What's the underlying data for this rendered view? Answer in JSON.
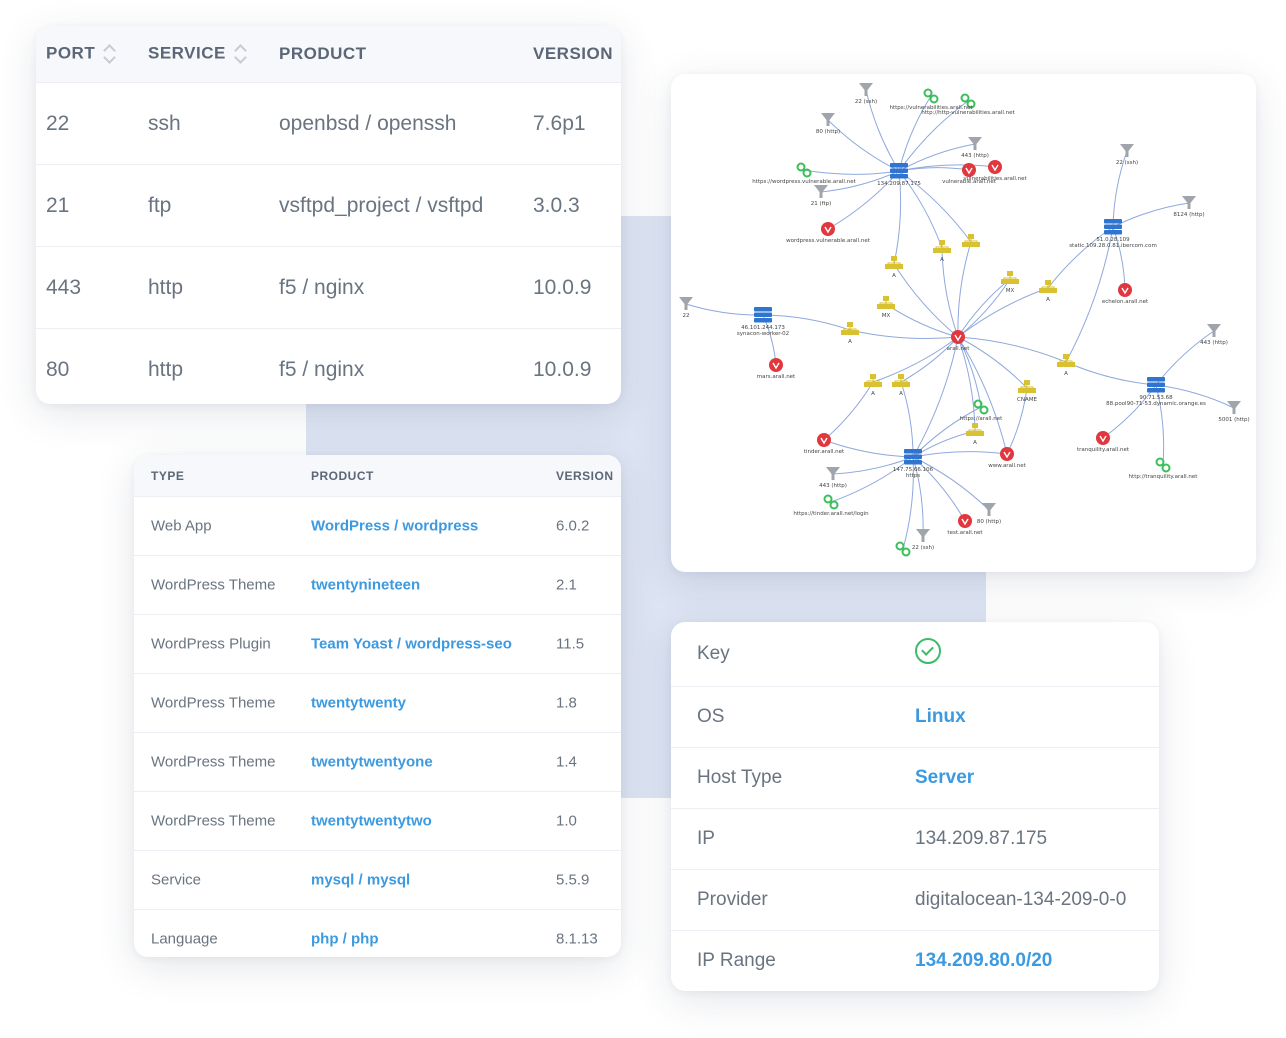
{
  "ports_table": {
    "headers": {
      "port": "PORT",
      "service": "SERVICE",
      "product": "PRODUCT",
      "version": "VERSION"
    },
    "rows": [
      {
        "port": "22",
        "service": "ssh",
        "product": "openbsd / openssh",
        "version": "7.6p1"
      },
      {
        "port": "21",
        "service": "ftp",
        "product": "vsftpd_project / vsftpd",
        "version": "3.0.3"
      },
      {
        "port": "443",
        "service": "http",
        "product": "f5 / nginx",
        "version": "10.0.9"
      },
      {
        "port": "80",
        "service": "http",
        "product": "f5 / nginx",
        "version": "10.0.9"
      }
    ]
  },
  "tech_table": {
    "headers": {
      "type": "TYPE",
      "product": "PRODUCT",
      "version": "VERSION"
    },
    "rows": [
      {
        "type": "Web App",
        "product": "WordPress / wordpress",
        "version": "6.0.2"
      },
      {
        "type": "WordPress Theme",
        "product": "twentynineteen",
        "version": "2.1"
      },
      {
        "type": "WordPress Plugin",
        "product": "Team Yoast / wordpress-seo",
        "version": "11.5"
      },
      {
        "type": "WordPress Theme",
        "product": "twentytwenty",
        "version": "1.8"
      },
      {
        "type": "WordPress Theme",
        "product": "twentytwentyone",
        "version": "1.4"
      },
      {
        "type": "WordPress Theme",
        "product": "twentytwentytwo",
        "version": "1.0"
      },
      {
        "type": "Service",
        "product": "mysql / mysql",
        "version": "5.5.9"
      },
      {
        "type": "Language",
        "product": "php / php",
        "version": "8.1.13"
      }
    ]
  },
  "host_info": {
    "key_label": "Key",
    "key_status_icon": "check-circle-icon",
    "rows": [
      {
        "label": "OS",
        "value": "Linux",
        "link": true
      },
      {
        "label": "Host Type",
        "value": "Server",
        "link": true
      },
      {
        "label": "IP",
        "value": "134.209.87.175",
        "link": false
      },
      {
        "label": "Provider",
        "value": "digitalocean-134-209-0-0",
        "link": false
      },
      {
        "label": "IP Range",
        "value": "134.209.80.0/20",
        "link": true
      }
    ]
  },
  "graph": {
    "colors": {
      "edge": "#8fa8dc",
      "server": "#2f74d0",
      "vuln": "#e0383e",
      "dns": "#d8c233",
      "port": "#a0a4ab",
      "link": "#3cbf5a"
    },
    "labels": {
      "n1": "134.209.87.175",
      "n2": "46.101.244.173",
      "n2b": "synacon-worker-02",
      "n3": "51.0.28.109",
      "n3b": "static.109.28.0.81.ibercom.com",
      "n4": "147.75.66.106",
      "n4b": "https",
      "n5": "90.71.53.68",
      "n5b": "88.pool90-71-53.dynamic.orange.es",
      "center": "arall.net",
      "p22a": "22 (ssh)",
      "p80a": "80 (http)",
      "p443a": "443 (http)",
      "p21": "21 (ftp)",
      "p22b": "22 (ssh)",
      "p8124": "8124 (http)",
      "p22c": "22",
      "p443b": "443 (http)",
      "p5001": "5001 (http)",
      "p443c": "443 (http)",
      "p80b": "80 (http)",
      "p22d": "22 (ssh)",
      "u1": "https://vulnerabilities.arall.net",
      "u2": "http://http-vulnerabilities.arall.net",
      "u3": "https://wordpress.vulnerable.arall.net",
      "u4": "https://arall.net",
      "u5": "https://tinder.arall.net/login",
      "u6": "http://tranquility.arall.net",
      "v1": "vulnerable.arall.net",
      "v2": "wordpress.vulnerable.arall.net",
      "v3": "echelon.arall.net",
      "v4": "mars.arall.net",
      "v5": "tinder.arall.net",
      "v6": "www.arall.net",
      "v7": "test.arall.net",
      "v8": "tranquility.arall.net",
      "v9": "vulnerabilities.arall.net",
      "r1": "A",
      "r2": "A",
      "r3": "MX",
      "r4": "A",
      "r5": "MX",
      "r6": "A",
      "r7": "A",
      "r8": "A",
      "r9": "A",
      "r10": "CNAME",
      "r11": "A",
      "r12": "A"
    }
  }
}
